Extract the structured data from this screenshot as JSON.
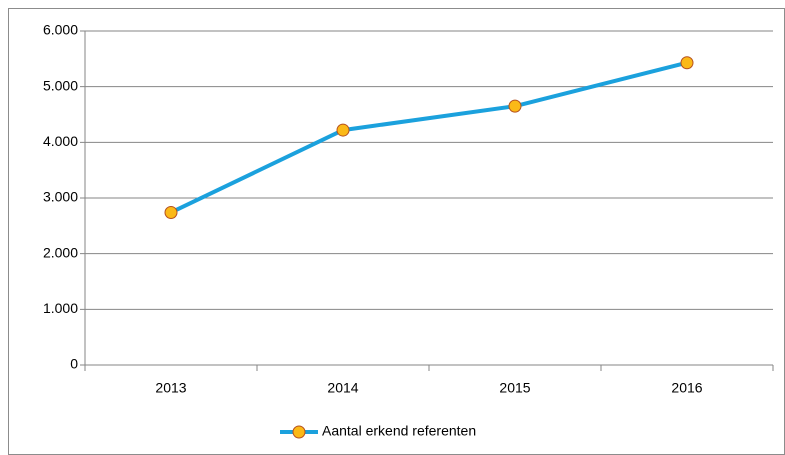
{
  "chart_data": {
    "type": "line",
    "categories": [
      "2013",
      "2014",
      "2015",
      "2016"
    ],
    "series": [
      {
        "name": "Aantal erkend referenten",
        "color": "#1ba1dd",
        "marker_color": "#fbb917",
        "marker_edge_color": "#b5501f",
        "values": [
          2740,
          4220,
          4650,
          5430
        ]
      }
    ],
    "ylim": [
      0,
      6000
    ],
    "yticks": [
      0,
      {
        "value": 1000,
        "label": "1.000"
      },
      {
        "value": 2000,
        "label": "2.000"
      },
      {
        "value": 3000,
        "label": "3.000"
      },
      {
        "value": 4000,
        "label": "4.000"
      },
      {
        "value": 5000,
        "label": "5.000"
      },
      {
        "value": 6000,
        "label": "6.000"
      }
    ],
    "grid": true,
    "legend": "bottom"
  }
}
